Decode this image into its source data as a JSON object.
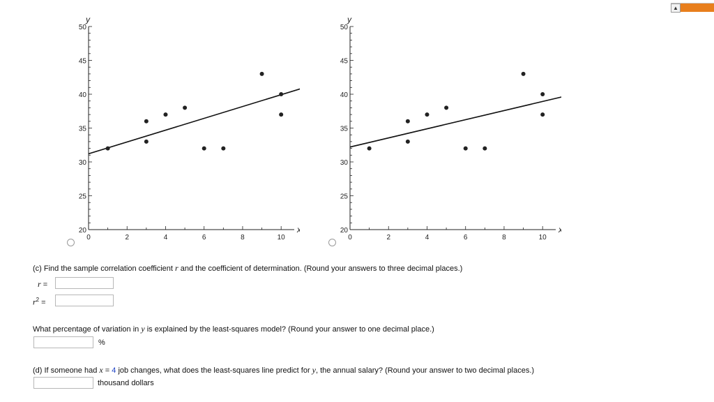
{
  "chart_data": [
    {
      "type": "scatter",
      "title": "",
      "xlabel": "x",
      "ylabel": "y",
      "xlim": [
        0,
        10.5
      ],
      "ylim": [
        20,
        50
      ],
      "x_ticks": [
        "0",
        "2",
        "4",
        "6",
        "8",
        "10"
      ],
      "x_tick_values": [
        0,
        2,
        4,
        6,
        8,
        10
      ],
      "y_ticks": [
        "20",
        "25",
        "30",
        "35",
        "40",
        "45",
        "50"
      ],
      "y_tick_values": [
        20,
        25,
        30,
        35,
        40,
        45,
        50
      ],
      "points": [
        [
          1,
          32
        ],
        [
          3,
          36
        ],
        [
          3,
          33
        ],
        [
          4,
          37
        ],
        [
          5,
          38
        ],
        [
          6,
          32
        ],
        [
          7,
          32
        ],
        [
          9,
          43
        ],
        [
          10,
          40
        ],
        [
          10,
          37
        ]
      ],
      "line": {
        "x1": 0,
        "y1": 31.2,
        "x2": 11,
        "y2": 40.8
      }
    },
    {
      "type": "scatter",
      "title": "",
      "xlabel": "x",
      "ylabel": "y",
      "xlim": [
        0,
        10.5
      ],
      "ylim": [
        20,
        50
      ],
      "x_ticks": [
        "0",
        "2",
        "4",
        "6",
        "8",
        "10"
      ],
      "x_tick_values": [
        0,
        2,
        4,
        6,
        8,
        10
      ],
      "y_ticks": [
        "20",
        "25",
        "30",
        "35",
        "40",
        "45",
        "50"
      ],
      "y_tick_values": [
        20,
        25,
        30,
        35,
        40,
        45,
        50
      ],
      "points": [
        [
          1,
          32
        ],
        [
          3,
          36
        ],
        [
          3,
          33
        ],
        [
          4,
          37
        ],
        [
          5,
          38
        ],
        [
          6,
          32
        ],
        [
          7,
          32
        ],
        [
          9,
          43
        ],
        [
          10,
          40
        ],
        [
          10,
          37
        ]
      ],
      "line": {
        "x1": 0,
        "y1": 32.2,
        "x2": 11,
        "y2": 39.6
      }
    }
  ],
  "part_c": {
    "prefix": "(c) Find the sample correlation coefficient ",
    "var_r": "r",
    "suffix": " and the coefficient of determination. (Round your answers to three decimal places.)",
    "r_label": "r =",
    "r2_base": "r",
    "r2_sup": "2",
    "r2_eq": " =",
    "r_value": "",
    "r2_value": ""
  },
  "percent_question": {
    "prefix": "What percentage of variation in ",
    "var_y": "y",
    "suffix": " is explained by the least-squares model? (Round your answer to one decimal place.)",
    "unit": "%",
    "value": ""
  },
  "part_d": {
    "prefix": "(d) If someone had ",
    "var_x": "x",
    "eq": " = ",
    "x_value": "4",
    "middle": " job changes, what does the least-squares line predict for ",
    "var_y": "y",
    "suffix": ", the annual salary? (Round your answer to two decimal places.)",
    "unit": "thousand dollars",
    "value": ""
  },
  "corner_widget": {
    "arrow": "▲"
  }
}
